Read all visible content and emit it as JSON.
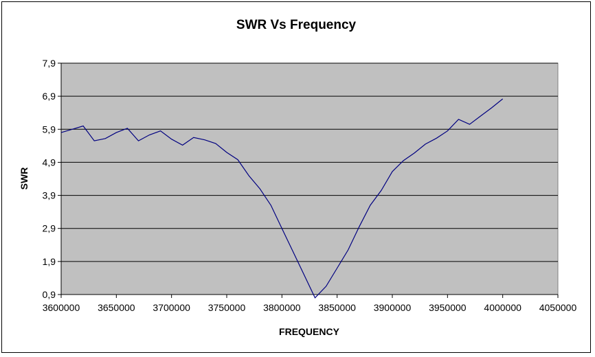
{
  "chart_data": {
    "type": "line",
    "title": "SWR Vs Frequency",
    "xlabel": "FREQUENCY",
    "ylabel": "SWR",
    "xlim": [
      3600000,
      4050000
    ],
    "ylim": [
      0.9,
      7.9
    ],
    "x_ticks": [
      "3600000",
      "3650000",
      "3700000",
      "3750000",
      "3800000",
      "3850000",
      "3900000",
      "3950000",
      "4000000",
      "4050000"
    ],
    "y_ticks": [
      "7,9",
      "6,9",
      "5,9",
      "4,9",
      "3,9",
      "2,9",
      "1,9",
      "0,9"
    ],
    "grid": "horizontal",
    "plot_background": "#c0c0c0",
    "line_color": "#000080",
    "series": [
      {
        "x": [
          3600000,
          3610000,
          3620000,
          3630000,
          3640000,
          3650000,
          3660000,
          3670000,
          3680000,
          3690000,
          3700000,
          3710000,
          3720000,
          3730000,
          3740000,
          3750000,
          3760000,
          3770000,
          3780000,
          3790000,
          3800000,
          3810000,
          3820000,
          3830000,
          3840000,
          3850000,
          3860000,
          3870000,
          3880000,
          3890000,
          3900000,
          3910000,
          3920000,
          3930000,
          3940000,
          3950000,
          3960000,
          3970000,
          3980000,
          3990000,
          4000000
        ],
        "y": [
          5.8,
          5.9,
          6.0,
          5.55,
          5.62,
          5.8,
          5.93,
          5.55,
          5.73,
          5.85,
          5.6,
          5.42,
          5.65,
          5.58,
          5.47,
          5.2,
          4.98,
          4.5,
          4.1,
          3.6,
          2.9,
          2.2,
          1.5,
          0.8,
          1.15,
          1.7,
          2.25,
          2.95,
          3.6,
          4.05,
          4.62,
          4.95,
          5.18,
          5.45,
          5.63,
          5.85,
          6.2,
          6.05,
          6.3,
          6.55,
          6.82
        ]
      }
    ]
  }
}
